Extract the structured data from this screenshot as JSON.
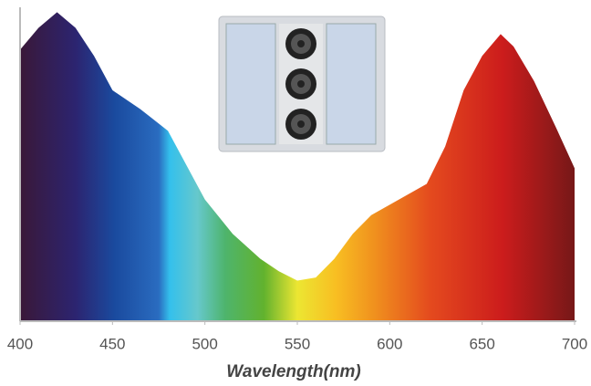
{
  "chart_data": {
    "type": "area",
    "xlabel": "Wavelength(nm)",
    "x": [
      400,
      410,
      420,
      430,
      440,
      450,
      465,
      480,
      490,
      500,
      515,
      530,
      540,
      550,
      560,
      570,
      580,
      590,
      605,
      620,
      630,
      640,
      650,
      660,
      667,
      678,
      690,
      700
    ],
    "values": [
      87,
      94,
      99,
      94,
      85,
      74,
      68,
      61,
      50,
      39,
      28,
      20,
      16,
      13,
      14,
      20,
      28,
      34,
      39,
      44,
      56,
      74,
      85,
      92,
      88,
      77,
      62,
      49
    ],
    "xlim": [
      400,
      700
    ],
    "ylim": [
      0,
      100
    ],
    "xticks": [
      400,
      450,
      500,
      550,
      600,
      650,
      700
    ]
  }
}
